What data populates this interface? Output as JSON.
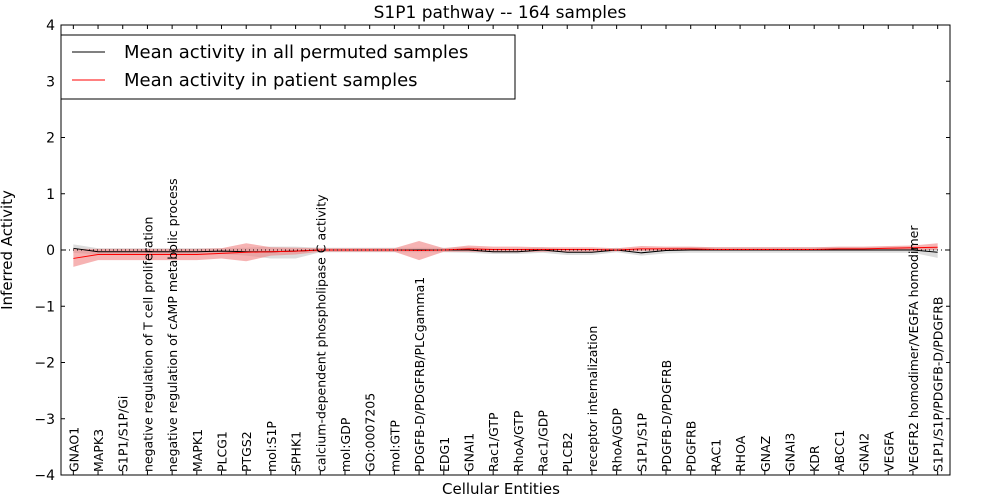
{
  "chart_data": {
    "type": "line",
    "title": "S1P1 pathway -- 164 samples",
    "xlabel": "Cellular Entities",
    "ylabel": "Inferred Activity",
    "ylim": [
      -4,
      4
    ],
    "yticks": [
      "4",
      "3",
      "2",
      "1",
      "0",
      "−1",
      "−2",
      "−3",
      "−4"
    ],
    "ytick_values": [
      4,
      3,
      2,
      1,
      0,
      -1,
      -2,
      -3,
      -4
    ],
    "legend": {
      "position": "top-left",
      "entries": [
        {
          "label": "Mean activity in all permuted samples",
          "color": "#000000"
        },
        {
          "label": "Mean activity in patient samples",
          "color": "#ff0000"
        }
      ]
    },
    "zero_line": "dotted",
    "categories": [
      "GNAO1",
      "MAPK3",
      "S1P1/S1P/Gi",
      "negative regulation of T cell proliferation",
      "negative regulation of cAMP metabolic process",
      "MAPK1",
      "PLCG1",
      "PTGS2",
      "mol:S1P",
      "SPHK1",
      "calcium-dependent phospholipase C activity",
      "mol:GDP",
      "GO:0007205",
      "mol:GTP",
      "PDGFB-D/PDGFRB/PLCgamma1",
      "EDG1",
      "GNAI1",
      "Rac1/GTP",
      "RhoA/GTP",
      "Rac1/GDP",
      "PLCB2",
      "receptor internalization",
      "RhoA/GDP",
      "S1P1/S1P",
      "PDGFB-D/PDGFRB",
      "PDGFRB",
      "RAC1",
      "RHOA",
      "GNAZ",
      "GNAI3",
      "KDR",
      "ABCC1",
      "GNAI2",
      "VEGFA",
      "VEGFR2 homodimer/VEGFA homodimer",
      "S1P1/S1P/PDGFB-D/PDGFRB"
    ],
    "series": [
      {
        "name": "Mean activity in all permuted samples",
        "color": "#000000",
        "band_color": "#c0c0c0",
        "values": [
          0.03,
          -0.03,
          -0.03,
          -0.03,
          -0.03,
          -0.03,
          -0.02,
          -0.03,
          -0.03,
          -0.02,
          0.0,
          0.0,
          0.0,
          0.0,
          0.0,
          0.0,
          0.0,
          -0.03,
          -0.03,
          0.0,
          -0.04,
          -0.04,
          0.0,
          -0.05,
          -0.01,
          0.0,
          0.0,
          0.0,
          0.0,
          0.0,
          0.0,
          0.0,
          0.0,
          0.0,
          0.0,
          -0.04
        ],
        "lower": [
          -0.05,
          -0.08,
          -0.08,
          -0.08,
          -0.08,
          -0.08,
          -0.07,
          -0.1,
          -0.15,
          -0.15,
          -0.04,
          -0.04,
          -0.04,
          -0.04,
          -0.04,
          -0.04,
          -0.05,
          -0.07,
          -0.07,
          -0.05,
          -0.09,
          -0.09,
          -0.04,
          -0.1,
          -0.06,
          -0.05,
          -0.05,
          -0.05,
          -0.05,
          -0.05,
          -0.05,
          -0.05,
          -0.05,
          -0.05,
          -0.05,
          -0.14
        ],
        "upper": [
          0.1,
          0.03,
          0.03,
          0.03,
          0.03,
          0.03,
          0.03,
          0.04,
          0.06,
          0.06,
          0.04,
          0.04,
          0.04,
          0.04,
          0.04,
          0.04,
          0.05,
          0.02,
          0.02,
          0.05,
          0.01,
          0.01,
          0.04,
          0.0,
          0.04,
          0.05,
          0.05,
          0.05,
          0.05,
          0.05,
          0.05,
          0.05,
          0.05,
          0.05,
          0.05,
          0.05
        ]
      },
      {
        "name": "Mean activity in patient samples",
        "color": "#ff0000",
        "band_color": "#f08080",
        "values": [
          -0.15,
          -0.08,
          -0.08,
          -0.08,
          -0.08,
          -0.08,
          -0.06,
          -0.04,
          -0.03,
          -0.02,
          0.0,
          0.0,
          0.0,
          0.0,
          -0.01,
          0.0,
          0.02,
          0.01,
          0.01,
          0.01,
          0.01,
          0.01,
          0.0,
          0.02,
          0.02,
          0.02,
          0.01,
          0.01,
          0.01,
          0.01,
          0.01,
          0.02,
          0.02,
          0.03,
          0.04,
          0.05
        ],
        "lower": [
          -0.3,
          -0.18,
          -0.18,
          -0.18,
          -0.18,
          -0.18,
          -0.15,
          -0.2,
          -0.1,
          -0.08,
          -0.03,
          -0.03,
          -0.03,
          -0.03,
          -0.18,
          -0.03,
          -0.03,
          -0.04,
          -0.04,
          -0.03,
          -0.03,
          -0.03,
          -0.02,
          -0.02,
          -0.01,
          -0.01,
          -0.01,
          -0.01,
          -0.01,
          -0.01,
          -0.01,
          -0.01,
          -0.01,
          0.0,
          0.0,
          0.0
        ],
        "upper": [
          0.02,
          0.02,
          0.02,
          0.02,
          0.02,
          0.02,
          0.03,
          0.12,
          0.05,
          0.04,
          0.03,
          0.03,
          0.03,
          0.03,
          0.16,
          0.03,
          0.08,
          0.06,
          0.06,
          0.05,
          0.05,
          0.05,
          0.03,
          0.07,
          0.06,
          0.06,
          0.05,
          0.05,
          0.05,
          0.05,
          0.05,
          0.06,
          0.06,
          0.07,
          0.08,
          0.12
        ]
      }
    ]
  }
}
